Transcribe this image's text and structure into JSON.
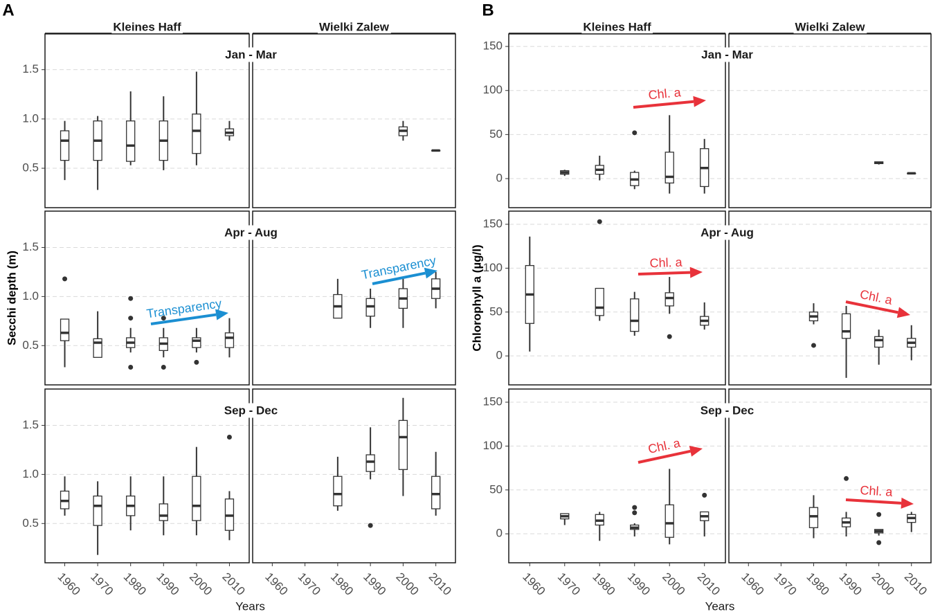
{
  "chart_data": [
    {
      "type": "boxplot",
      "panel_label": "A",
      "ylabel": "Secchi depth (m)",
      "xlabel": "Years",
      "columns": [
        {
          "name": "Kleines Haff",
          "sub": "(center)"
        },
        {
          "name": "Wielki Zalew",
          "sub": "(center)"
        }
      ],
      "rows": [
        "Jan - Mar",
        "Apr - Aug",
        "Sep - Dec"
      ],
      "categories": [
        "1960",
        "1970",
        "1980",
        "1990",
        "2000",
        "2010"
      ],
      "ylim": [
        0.1,
        1.87
      ],
      "yticks": [
        0.5,
        {
          "value": 1,
          "label": "1.0"
        },
        1.5
      ],
      "grid": true,
      "facets": [
        {
          "boxes": [
            {
              "min": 0.38,
              "q1": 0.58,
              "median": 0.78,
              "q3": 0.88,
              "max": 0.98
            },
            {
              "min": 0.28,
              "q1": 0.58,
              "median": 0.78,
              "q3": 0.98,
              "max": 1.03
            },
            {
              "min": 0.53,
              "q1": 0.57,
              "median": 0.73,
              "q3": 0.98,
              "max": 1.28
            },
            {
              "min": 0.48,
              "q1": 0.58,
              "median": 0.78,
              "q3": 0.98,
              "max": 1.23
            },
            {
              "min": 0.53,
              "q1": 0.65,
              "median": 0.88,
              "q3": 1.05,
              "max": 1.48
            },
            {
              "min": 0.78,
              "q1": 0.83,
              "median": 0.86,
              "q3": 0.9,
              "max": 0.98
            }
          ]
        },
        {
          "boxes": [
            null,
            null,
            null,
            null,
            {
              "min": 0.78,
              "q1": 0.83,
              "median": 0.88,
              "q3": 0.92,
              "max": 0.98
            },
            {
              "min": 0.68,
              "q1": 0.68,
              "median": 0.68,
              "q3": 0.68,
              "max": 0.68
            }
          ]
        },
        {
          "boxes": [
            {
              "min": 0.28,
              "q1": 0.55,
              "median": 0.63,
              "q3": 0.77,
              "max": 0.77,
              "outliers": [
                1.18
              ]
            },
            {
              "min": 0.38,
              "q1": 0.38,
              "median": 0.53,
              "q3": 0.57,
              "max": 0.85
            },
            {
              "min": 0.43,
              "q1": 0.48,
              "median": 0.53,
              "q3": 0.58,
              "max": 0.68,
              "outliers": [
                0.28,
                0.78,
                0.98
              ]
            },
            {
              "min": 0.38,
              "q1": 0.45,
              "median": 0.52,
              "q3": 0.58,
              "max": 0.68,
              "outliers": [
                0.28,
                0.78
              ]
            },
            {
              "min": 0.43,
              "q1": 0.48,
              "median": 0.55,
              "q3": 0.58,
              "max": 0.68,
              "outliers": [
                0.33
              ]
            },
            {
              "min": 0.38,
              "q1": 0.48,
              "median": 0.58,
              "q3": 0.63,
              "max": 0.78
            }
          ]
        },
        {
          "boxes": [
            null,
            null,
            {
              "min": 0.78,
              "q1": 0.78,
              "median": 0.9,
              "q3": 1.02,
              "max": 1.18
            },
            {
              "min": 0.68,
              "q1": 0.8,
              "median": 0.9,
              "q3": 0.98,
              "max": 1.08
            },
            {
              "min": 0.68,
              "q1": 0.88,
              "median": 0.98,
              "q3": 1.08,
              "max": 1.18
            },
            {
              "min": 0.88,
              "q1": 0.98,
              "median": 1.08,
              "q3": 1.18,
              "max": 1.25
            }
          ]
        },
        {
          "boxes": [
            {
              "min": 0.58,
              "q1": 0.65,
              "median": 0.73,
              "q3": 0.83,
              "max": 0.98
            },
            {
              "min": 0.18,
              "q1": 0.48,
              "median": 0.68,
              "q3": 0.78,
              "max": 0.93
            },
            {
              "min": 0.43,
              "q1": 0.58,
              "median": 0.68,
              "q3": 0.78,
              "max": 0.98
            },
            {
              "min": 0.38,
              "q1": 0.53,
              "median": 0.58,
              "q3": 0.7,
              "max": 0.98
            },
            {
              "min": 0.38,
              "q1": 0.53,
              "median": 0.68,
              "q3": 0.98,
              "max": 1.28
            },
            {
              "min": 0.33,
              "q1": 0.43,
              "median": 0.58,
              "q3": 0.75,
              "max": 0.83,
              "outliers": [
                1.38
              ]
            }
          ]
        },
        {
          "boxes": [
            null,
            null,
            {
              "min": 0.63,
              "q1": 0.68,
              "median": 0.8,
              "q3": 0.98,
              "max": 1.18
            },
            {
              "min": 0.95,
              "q1": 1.03,
              "median": 1.13,
              "q3": 1.2,
              "max": 1.48,
              "outliers": [
                0.48
              ]
            },
            {
              "min": 0.78,
              "q1": 1.05,
              "median": 1.38,
              "q3": 1.55,
              "max": 1.78
            },
            {
              "min": 0.58,
              "q1": 0.65,
              "median": 0.8,
              "q3": 0.98,
              "max": 1.23
            }
          ]
        }
      ],
      "annotations": [
        {
          "text": "Transparency",
          "color": "#1b8fd2"
        },
        {
          "text": "Transparency",
          "color": "#1b8fd2"
        }
      ]
    },
    {
      "type": "boxplot",
      "panel_label": "B",
      "ylabel": "Chlorophyll a (µg/l)",
      "xlabel": "Years",
      "columns": [
        {
          "name": "Kleines Haff",
          "sub": "(center)"
        },
        {
          "name": "Wielki Zalew",
          "sub": "(center)"
        }
      ],
      "rows": [
        "Jan - Mar",
        "Apr - Aug",
        "Sep - Dec"
      ],
      "categories": [
        "1960",
        "1970",
        "1980",
        "1990",
        "2000",
        "2010"
      ],
      "ylim": [
        -33,
        165
      ],
      "yticks": [
        0,
        50,
        100,
        150
      ],
      "grid": true,
      "facets": [
        {
          "boxes": [
            null,
            {
              "min": 3,
              "q1": 5,
              "median": 7,
              "q3": 9,
              "max": 10
            },
            {
              "min": -2,
              "q1": 5,
              "median": 10,
              "q3": 15,
              "max": 26
            },
            {
              "min": -12,
              "q1": -8,
              "median": -1,
              "q3": 7,
              "max": 9,
              "outliers": [
                52
              ]
            },
            {
              "min": -17,
              "q1": -5,
              "median": 2,
              "q3": 30,
              "max": 72
            },
            {
              "min": -17,
              "q1": -9,
              "median": 12,
              "q3": 34,
              "max": 45
            }
          ]
        },
        {
          "boxes": [
            null,
            null,
            null,
            null,
            {
              "min": 16,
              "q1": 17,
              "median": 18,
              "q3": 19,
              "max": 19
            },
            {
              "min": 6,
              "q1": 6,
              "median": 6,
              "q3": 6,
              "max": 6
            }
          ]
        },
        {
          "boxes": [
            {
              "min": 5,
              "q1": 37,
              "median": 70,
              "q3": 103,
              "max": 136
            },
            null,
            {
              "min": 40,
              "q1": 46,
              "median": 55,
              "q3": 77,
              "max": 77,
              "outliers": [
                153
              ]
            },
            {
              "min": 23,
              "q1": 28,
              "median": 40,
              "q3": 65,
              "max": 73
            },
            {
              "min": 48,
              "q1": 57,
              "median": 66,
              "q3": 72,
              "max": 90,
              "outliers": [
                22
              ]
            },
            {
              "min": 30,
              "q1": 35,
              "median": 40,
              "q3": 45,
              "max": 61
            }
          ]
        },
        {
          "boxes": [
            null,
            null,
            {
              "min": 36,
              "q1": 40,
              "median": 45,
              "q3": 50,
              "max": 60,
              "outliers": [
                12
              ]
            },
            {
              "min": -25,
              "q1": 20,
              "median": 28,
              "q3": 48,
              "max": 57
            },
            {
              "min": -10,
              "q1": 10,
              "median": 18,
              "q3": 22,
              "max": 30
            },
            {
              "min": -5,
              "q1": 10,
              "median": 15,
              "q3": 20,
              "max": 35
            }
          ]
        },
        {
          "boxes": [
            null,
            {
              "min": 10,
              "q1": 17,
              "median": 20,
              "q3": 23,
              "max": 23
            },
            {
              "min": -8,
              "q1": 10,
              "median": 15,
              "q3": 22,
              "max": 25
            },
            {
              "min": -3,
              "q1": 5,
              "median": 7,
              "q3": 10,
              "max": 12,
              "outliers": [
                24,
                30
              ]
            },
            {
              "min": -12,
              "q1": -4,
              "median": 12,
              "q3": 33,
              "max": 74
            },
            {
              "min": -3,
              "q1": 15,
              "median": 20,
              "q3": 25,
              "max": 25,
              "outliers": [
                44
              ]
            }
          ]
        },
        {
          "boxes": [
            null,
            null,
            {
              "min": -5,
              "q1": 7,
              "median": 20,
              "q3": 30,
              "max": 44
            },
            {
              "min": -3,
              "q1": 8,
              "median": 13,
              "q3": 18,
              "max": 25,
              "outliers": [
                63
              ]
            },
            {
              "min": -2,
              "q1": 1,
              "median": 3,
              "q3": 5,
              "max": 5,
              "outliers": [
                22,
                -10
              ]
            },
            {
              "min": 2,
              "q1": 13,
              "median": 18,
              "q3": 22,
              "max": 25
            }
          ]
        }
      ],
      "annotations": [
        {
          "text": "Chl. a",
          "color": "#e8323a"
        },
        {
          "text": "Chl. a",
          "color": "#e8323a"
        },
        {
          "text": "Chl. a",
          "color": "#e8323a"
        },
        {
          "text": "Chl. a",
          "color": "#e8323a"
        },
        {
          "text": "Chl. a",
          "color": "#e8323a"
        }
      ]
    }
  ]
}
